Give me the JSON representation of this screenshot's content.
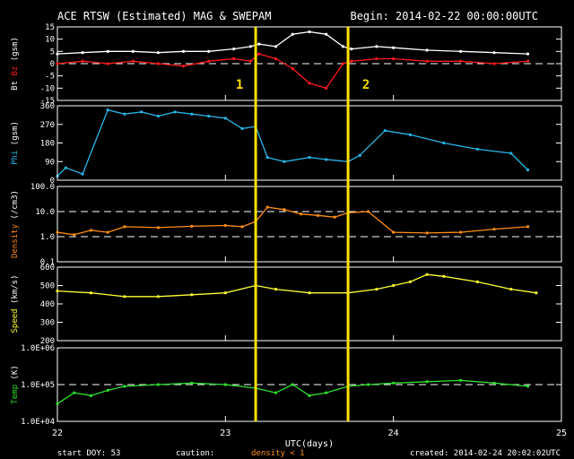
{
  "header": {
    "title": "ACE RTSW (Estimated) MAG & SWEPAM",
    "begin": "Begin: 2014-02-22 00:00:00UTC"
  },
  "footer": {
    "start_doy": "start DOY:  53",
    "caution": "caution:",
    "density_note": "density < 1",
    "created": "created: 2014-02-24 20:02:02UTC"
  },
  "colors": {
    "bt": "#ffffff",
    "bz": "#ff1a1a",
    "phi": "#29b6e8",
    "density": "#ff8c1a",
    "speed": "#ffff33",
    "temp": "#2ee02e",
    "marker": "#ffe000",
    "frame": "#ffffff"
  },
  "chart_data": {
    "type": "scatter",
    "xlabel": "UTC(days)",
    "x_ticks": [
      "22",
      "23",
      "24",
      "25"
    ],
    "x_range": [
      22,
      25
    ],
    "markers": [
      {
        "label": "1",
        "x": 23.18
      },
      {
        "label": "2",
        "x": 23.73
      }
    ],
    "panels": [
      {
        "id": "mag",
        "ylabel_parts": [
          {
            "text": "Bt",
            "color": "#ffffff"
          },
          {
            "text": "Bz",
            "color": "#ff1a1a"
          },
          {
            "text": "(gsm)",
            "color": "#ffffff"
          }
        ],
        "ylim": [
          -15,
          15
        ],
        "yticks": [
          "-15",
          "-10",
          "-5",
          "0",
          "5",
          "10",
          "15"
        ],
        "ref_lines": [
          0
        ],
        "series": [
          {
            "key": "bt",
            "x": [
              22.0,
              22.15,
              22.3,
              22.45,
              22.6,
              22.75,
              22.9,
              23.05,
              23.15,
              23.2,
              23.3,
              23.4,
              23.5,
              23.6,
              23.7,
              23.75,
              23.9,
              24.0,
              24.2,
              24.4,
              24.6,
              24.8
            ],
            "y": [
              4,
              4.5,
              5,
              5,
              4.5,
              5,
              5,
              6,
              7,
              8,
              7,
              12,
              13,
              12,
              7,
              6,
              7,
              6.5,
              5.5,
              5,
              4.5,
              4
            ]
          },
          {
            "key": "bz",
            "x": [
              22.0,
              22.15,
              22.3,
              22.45,
              22.6,
              22.75,
              22.9,
              23.05,
              23.15,
              23.2,
              23.3,
              23.4,
              23.5,
              23.6,
              23.7,
              23.75,
              23.9,
              24.0,
              24.2,
              24.4,
              24.6,
              24.8
            ],
            "y": [
              0,
              1,
              0,
              1,
              0,
              -1,
              1,
              2,
              1,
              4,
              2,
              -2,
              -8,
              -10,
              0,
              1,
              2,
              2,
              1,
              1,
              0,
              1
            ]
          }
        ]
      },
      {
        "id": "phi",
        "ylabel_parts": [
          {
            "text": "Phi",
            "color": "#29b6e8"
          },
          {
            "text": "(gsm)",
            "color": "#ffffff"
          }
        ],
        "ylim": [
          0,
          360
        ],
        "yticks": [
          "0",
          "90",
          "180",
          "270",
          "360"
        ],
        "ref_lines": [],
        "series": [
          {
            "key": "phi",
            "x": [
              22.0,
              22.05,
              22.15,
              22.3,
              22.4,
              22.5,
              22.6,
              22.7,
              22.8,
              22.9,
              23.0,
              23.1,
              23.18,
              23.25,
              23.35,
              23.5,
              23.6,
              23.73,
              23.8,
              23.95,
              24.1,
              24.3,
              24.5,
              24.7,
              24.8
            ],
            "y": [
              20,
              60,
              30,
              340,
              320,
              330,
              310,
              330,
              320,
              310,
              300,
              250,
              260,
              110,
              90,
              110,
              100,
              90,
              120,
              240,
              220,
              180,
              150,
              130,
              50
            ]
          }
        ]
      },
      {
        "id": "density",
        "scale": "log",
        "ylabel_parts": [
          {
            "text": "Density",
            "color": "#ff8c1a"
          },
          {
            "text": "(/cm3)",
            "color": "#ffffff"
          }
        ],
        "ylim": [
          0.1,
          100
        ],
        "yticks": [
          "0.1",
          "1.0",
          "10.0",
          "100.0"
        ],
        "ref_lines": [
          1,
          10
        ],
        "series": [
          {
            "key": "density",
            "x": [
              22.0,
              22.1,
              22.2,
              22.3,
              22.4,
              22.6,
              22.8,
              23.0,
              23.1,
              23.18,
              23.25,
              23.35,
              23.45,
              23.55,
              23.65,
              23.73,
              23.85,
              24.0,
              24.2,
              24.4,
              24.6,
              24.8
            ],
            "y": [
              1.5,
              1.2,
              1.8,
              1.5,
              2.5,
              2.3,
              2.6,
              2.8,
              2.5,
              4,
              15,
              12,
              8,
              7,
              6,
              9,
              10,
              1.5,
              1.4,
              1.5,
              2,
              2.5
            ]
          }
        ]
      },
      {
        "id": "speed",
        "ylabel_parts": [
          {
            "text": "Speed",
            "color": "#ffff33"
          },
          {
            "text": "(km/s)",
            "color": "#ffffff"
          }
        ],
        "ylim": [
          200,
          600
        ],
        "yticks": [
          "200",
          "300",
          "400",
          "500",
          "600"
        ],
        "ref_lines": [],
        "series": [
          {
            "key": "speed",
            "x": [
              22.0,
              22.2,
              22.4,
              22.6,
              22.8,
              23.0,
              23.18,
              23.3,
              23.5,
              23.73,
              23.9,
              24.0,
              24.1,
              24.2,
              24.3,
              24.5,
              24.7,
              24.85
            ],
            "y": [
              470,
              460,
              440,
              440,
              450,
              460,
              500,
              480,
              460,
              460,
              480,
              500,
              520,
              560,
              550,
              520,
              480,
              460
            ]
          }
        ]
      },
      {
        "id": "temp",
        "scale": "log",
        "ylabel_parts": [
          {
            "text": "Temp",
            "color": "#2ee02e"
          },
          {
            "text": "(K)",
            "color": "#ffffff"
          }
        ],
        "ylim": [
          10000,
          1000000
        ],
        "yticks": [
          "1.0E+04",
          "1.0E+05",
          "1.0E+06"
        ],
        "ref_lines": [
          100000
        ],
        "series": [
          {
            "key": "temp",
            "x": [
              22.0,
              22.1,
              22.2,
              22.3,
              22.4,
              22.6,
              22.8,
              23.0,
              23.18,
              23.3,
              23.4,
              23.5,
              23.6,
              23.73,
              23.85,
              24.0,
              24.2,
              24.4,
              24.6,
              24.8
            ],
            "y": [
              30000,
              60000,
              50000,
              70000,
              90000,
              100000,
              110000,
              100000,
              80000,
              60000,
              100000,
              50000,
              60000,
              90000,
              100000,
              110000,
              120000,
              130000,
              110000,
              90000
            ]
          }
        ]
      }
    ]
  }
}
